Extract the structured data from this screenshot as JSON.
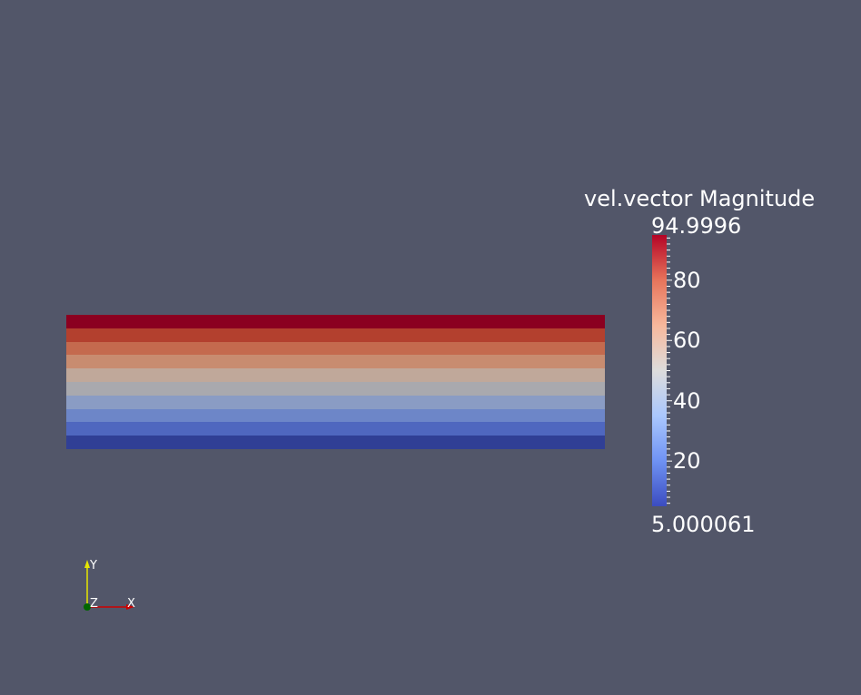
{
  "colorbar": {
    "title": "vel.vector Magnitude",
    "max_label": "94.9996",
    "min_label": "5.000061",
    "range": [
      5.000061,
      94.9996
    ],
    "ticks": [
      {
        "value": 80,
        "label": "80"
      },
      {
        "value": 60,
        "label": "60"
      },
      {
        "value": 40,
        "label": "40"
      },
      {
        "value": 20,
        "label": "20"
      }
    ],
    "colormap": [
      "#3b4cc0",
      "#6f92f3",
      "#aac7fd",
      "#dddcdc",
      "#f7b89c",
      "#e7745b",
      "#b40426"
    ],
    "top_color": "#b40426",
    "bottom_color": "#3b4cc0"
  },
  "slab": {
    "bands_top_to_bottom": [
      "#8b0020",
      "#b3402e",
      "#c46a4e",
      "#c88c70",
      "#c0a89a",
      "#a9a9ae",
      "#8a9cc4",
      "#6d86c8",
      "#4f67bf",
      "#303f95"
    ]
  },
  "axes": {
    "x_label": "X",
    "y_label": "Y",
    "z_label": "Z",
    "x_color": "#cc0000",
    "y_color": "#e6e600",
    "z_color": "#006600"
  }
}
